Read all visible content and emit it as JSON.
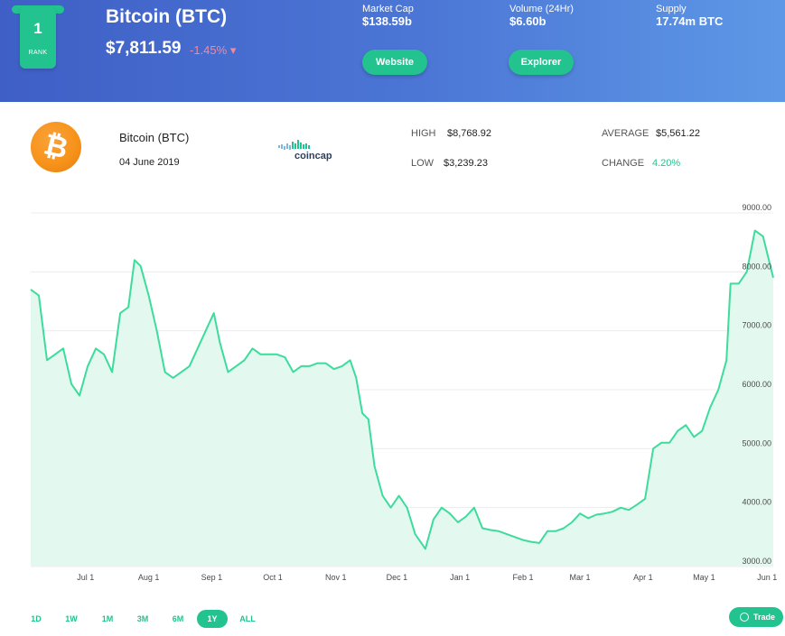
{
  "header": {
    "rank": "1",
    "rank_label": "RANK",
    "title": "Bitcoin (BTC)",
    "price": "$7,811.59",
    "change": "-1.45%",
    "change_arrow": "▾",
    "stats": [
      {
        "label": "Market Cap",
        "value": "$138.59b"
      },
      {
        "label": "Volume (24Hr)",
        "value": "$6.60b"
      },
      {
        "label": "Supply",
        "value": "17.74m BTC"
      }
    ],
    "website_label": "Website",
    "explorer_label": "Explorer"
  },
  "info": {
    "logo_glyph": "₿",
    "name": "Bitcoin (BTC)",
    "date": "04 June 2019",
    "brand": "coincap",
    "high_label": "HIGH",
    "high_value": "$8,768.92",
    "low_label": "LOW",
    "low_value": "$3,239.23",
    "average_label": "AVERAGE",
    "average_value": "$5,561.22",
    "change_label": "CHANGE",
    "change_value": "4.20%"
  },
  "colors": {
    "accent": "#22c38e",
    "line": "#3ddc9c",
    "fill": "#e3f9ef",
    "negative": "#f08a9c",
    "bitcoin": "#f7931a"
  },
  "chart_data": {
    "type": "area",
    "x_ticks": [
      "Jul 1",
      "Aug 1",
      "Sep 1",
      "Oct 1",
      "Nov 1",
      "Dec 1",
      "Jan 1",
      "Feb 1",
      "Mar 1",
      "Apr 1",
      "May 1",
      "Jun 1"
    ],
    "y_ticks": [
      "3000.00",
      "4000.00",
      "5000.00",
      "6000.00",
      "7000.00",
      "8000.00",
      "9000.00"
    ],
    "ylim": [
      3000,
      9000
    ],
    "grid": true,
    "x": [
      "2018-06-04",
      "2018-06-08",
      "2018-06-12",
      "2018-06-16",
      "2018-06-20",
      "2018-06-24",
      "2018-06-28",
      "2018-07-02",
      "2018-07-06",
      "2018-07-10",
      "2018-07-14",
      "2018-07-18",
      "2018-07-22",
      "2018-07-25",
      "2018-07-28",
      "2018-08-01",
      "2018-08-05",
      "2018-08-09",
      "2018-08-13",
      "2018-08-17",
      "2018-08-21",
      "2018-08-25",
      "2018-08-29",
      "2018-09-02",
      "2018-09-05",
      "2018-09-09",
      "2018-09-13",
      "2018-09-17",
      "2018-09-21",
      "2018-09-25",
      "2018-09-29",
      "2018-10-03",
      "2018-10-07",
      "2018-10-11",
      "2018-10-15",
      "2018-10-19",
      "2018-10-23",
      "2018-10-27",
      "2018-10-31",
      "2018-11-04",
      "2018-11-08",
      "2018-11-11",
      "2018-11-14",
      "2018-11-17",
      "2018-11-20",
      "2018-11-24",
      "2018-11-28",
      "2018-12-02",
      "2018-12-06",
      "2018-12-10",
      "2018-12-15",
      "2018-12-19",
      "2018-12-23",
      "2018-12-27",
      "2018-12-31",
      "2019-01-04",
      "2019-01-08",
      "2019-01-12",
      "2019-01-16",
      "2019-01-20",
      "2019-01-24",
      "2019-01-28",
      "2019-02-01",
      "2019-02-05",
      "2019-02-09",
      "2019-02-13",
      "2019-02-17",
      "2019-02-21",
      "2019-02-25",
      "2019-03-01",
      "2019-03-05",
      "2019-03-09",
      "2019-03-13",
      "2019-03-17",
      "2019-03-21",
      "2019-03-25",
      "2019-03-29",
      "2019-04-02",
      "2019-04-06",
      "2019-04-10",
      "2019-04-14",
      "2019-04-18",
      "2019-04-22",
      "2019-04-26",
      "2019-04-30",
      "2019-05-04",
      "2019-05-08",
      "2019-05-12",
      "2019-05-14",
      "2019-05-18",
      "2019-05-22",
      "2019-05-26",
      "2019-05-30",
      "2019-06-04"
    ],
    "y": [
      7700,
      7600,
      6500,
      6600,
      6700,
      6100,
      5900,
      6400,
      6700,
      6600,
      6300,
      7300,
      7400,
      8200,
      8100,
      7600,
      7000,
      6300,
      6200,
      6300,
      6400,
      6700,
      7000,
      7300,
      6800,
      6300,
      6400,
      6500,
      6700,
      6600,
      6600,
      6600,
      6550,
      6300,
      6400,
      6400,
      6450,
      6450,
      6350,
      6400,
      6500,
      6200,
      5600,
      5500,
      4700,
      4200,
      4000,
      4200,
      4000,
      3550,
      3300,
      3800,
      4000,
      3900,
      3750,
      3850,
      4000,
      3650,
      3620,
      3600,
      3550,
      3500,
      3450,
      3420,
      3400,
      3600,
      3600,
      3650,
      3750,
      3900,
      3820,
      3880,
      3900,
      3930,
      4000,
      3960,
      4050,
      4150,
      5000,
      5100,
      5100,
      5300,
      5400,
      5200,
      5300,
      5700,
      6000,
      6500,
      7800,
      7800,
      8000,
      8700,
      8600,
      7900
    ]
  },
  "ranges": [
    "1D",
    "1W",
    "1M",
    "3M",
    "6M",
    "1Y",
    "ALL"
  ],
  "active_range": "1Y",
  "trade_label": "Trade"
}
